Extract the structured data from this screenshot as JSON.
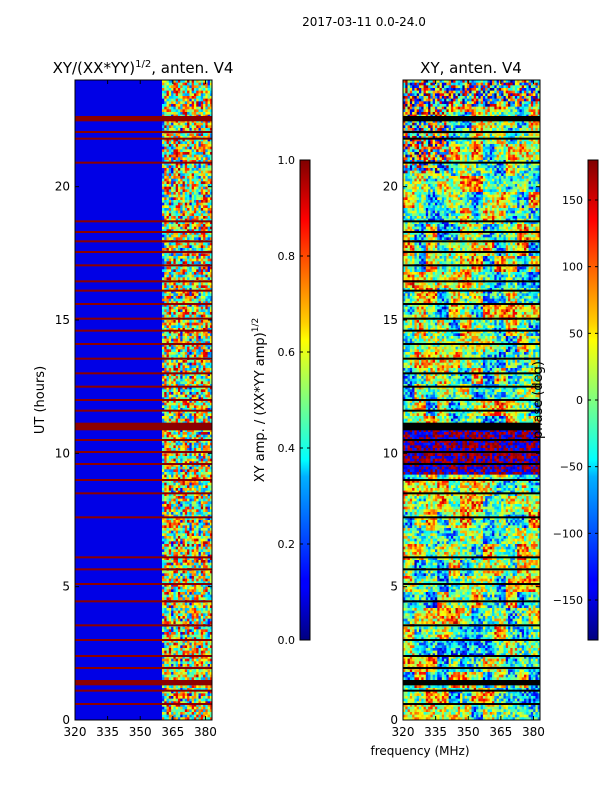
{
  "suptitle": "2017-03-11 0.0-24.0",
  "xlabel": "frequency (MHz)",
  "chart_data": [
    {
      "type": "heatmap",
      "title_main": "XY/(XX*YY)",
      "title_sup": "1/2",
      "title_rest": ", anten. V4",
      "ylabel": "UT (hours)",
      "xlim": [
        320,
        383
      ],
      "ylim": [
        0,
        24
      ],
      "x_ticks": [
        320,
        335,
        350,
        365,
        380
      ],
      "y_ticks": [
        0,
        5,
        10,
        15,
        20
      ],
      "colorbar": {
        "label_main": "XY amp. / (XX*YY amp)",
        "label_sup": "1/2",
        "range": [
          0.0,
          1.0
        ],
        "ticks": [
          "0.0",
          "0.2",
          "0.4",
          "0.6",
          "0.8",
          "1.0"
        ]
      },
      "description_values": {
        "low_band_MHz": [
          320,
          360
        ],
        "low_band_value": 0.1,
        "high_band_MHz": [
          360,
          383
        ],
        "high_band_value_range": [
          0.2,
          1.0
        ]
      }
    },
    {
      "type": "heatmap",
      "title": "XY, anten. V4",
      "xlim": [
        320,
        383
      ],
      "ylim": [
        0,
        24
      ],
      "x_ticks": [
        320,
        335,
        350,
        365,
        380
      ],
      "y_ticks": [
        0,
        5,
        10,
        15,
        20
      ],
      "colorbar": {
        "label": "phase (deg)",
        "range": [
          -180,
          180
        ],
        "ticks": [
          "−150",
          "−100",
          "−50",
          "0",
          "50",
          "100",
          "150"
        ]
      },
      "description_values": {
        "value_range_deg": [
          -180,
          180
        ]
      }
    }
  ],
  "flagged_hours": [
    0.6,
    1.1,
    1.35,
    1.45,
    1.95,
    2.4,
    3.0,
    3.55,
    4.45,
    5.1,
    5.65,
    6.1,
    7.6,
    8.5,
    9.0,
    9.6,
    10.05,
    10.5,
    10.9,
    11.05,
    11.6,
    12.0,
    12.5,
    13.0,
    13.55,
    14.1,
    14.6,
    15.05,
    15.6,
    16.1,
    16.45,
    17.05,
    17.55,
    17.95,
    18.3,
    18.7,
    20.9,
    21.8,
    22.05,
    22.5
  ]
}
